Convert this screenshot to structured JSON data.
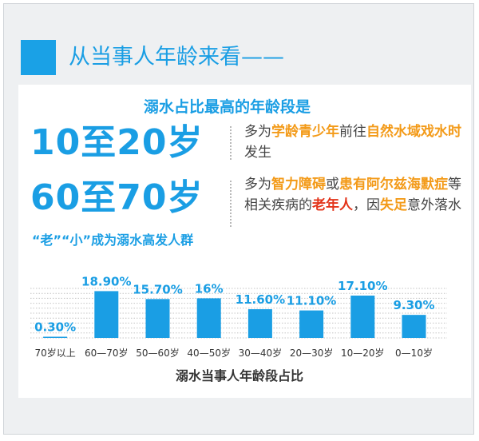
{
  "header": {
    "title": "从当事人年龄来看——"
  },
  "subtitle": "溺水占比最高的年龄段是",
  "highlights": [
    {
      "age": "10至20岁",
      "desc": [
        {
          "t": "多为",
          "s": "n"
        },
        {
          "t": "学龄青少年",
          "s": "o"
        },
        {
          "t": "前往",
          "s": "n"
        },
        {
          "t": "自然水域戏水时",
          "s": "o"
        },
        {
          "t": "发生",
          "s": "n"
        }
      ]
    },
    {
      "age": "60至70岁",
      "desc": [
        {
          "t": "多为",
          "s": "n"
        },
        {
          "t": "智力障碍",
          "s": "o"
        },
        {
          "t": "或",
          "s": "n"
        },
        {
          "t": "患有阿尔兹海默症",
          "s": "o"
        },
        {
          "t": "等相关疾病的",
          "s": "n"
        },
        {
          "t": "老年人",
          "s": "r"
        },
        {
          "t": "，因",
          "s": "n"
        },
        {
          "t": "失足",
          "s": "o"
        },
        {
          "t": "意外落水",
          "s": "n"
        }
      ]
    }
  ],
  "note": "“老”“小”成为溺水高发人群",
  "chart_data": {
    "type": "bar",
    "categories": [
      "70岁以上",
      "60—70岁",
      "50—60岁",
      "40—50岁",
      "30—40岁",
      "20—30岁",
      "10—20岁",
      "0—10岁"
    ],
    "values": [
      0.3,
      18.9,
      15.7,
      16,
      11.6,
      11.1,
      17.1,
      9.3
    ],
    "labels": [
      "0.30%",
      "18.90%",
      "15.70%",
      "16%",
      "11.60%",
      "11.10%",
      "17.10%",
      "9.30%"
    ],
    "xlabel": "溺水当事人年龄段占比",
    "ylim": [
      0,
      20
    ],
    "grid": "horizontal-dotted",
    "bar_color": "#1a9ee4"
  },
  "colors": {
    "accent": "#1a9ee4",
    "orange": "#f39a18",
    "red": "#e3341a"
  }
}
